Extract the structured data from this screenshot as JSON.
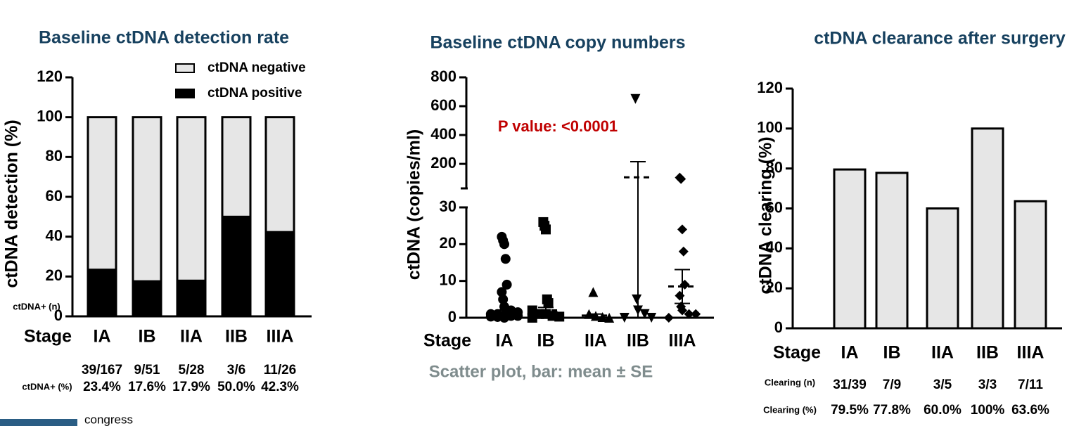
{
  "chart_data": [
    {
      "type": "bar",
      "stacked": true,
      "title": "Baseline ctDNA detection rate",
      "ylabel": "ctDNA detection (%)",
      "xlabel": "Stage",
      "categories": [
        "IA",
        "IB",
        "IIA",
        "IIB",
        "IIIA"
      ],
      "series": [
        {
          "name": "ctDNA positive",
          "color": "#000000",
          "values": [
            23.4,
            17.6,
            17.9,
            50.0,
            42.3
          ]
        },
        {
          "name": "ctDNA negative",
          "color": "#e6e6e6",
          "values": [
            76.6,
            82.4,
            82.1,
            50.0,
            57.7
          ]
        }
      ],
      "ylim": [
        0,
        120
      ],
      "yticks": [
        0,
        20,
        40,
        60,
        80,
        100,
        120
      ],
      "legend": "top-right",
      "table": [
        {
          "label": "ctDNA+ (n)",
          "values": [
            "39/167",
            "9/51",
            "5/28",
            "3/6",
            "11/26"
          ]
        },
        {
          "label": "ctDNA+ (%)",
          "values": [
            "23.4%",
            "17.6%",
            "17.9%",
            "50.0%",
            "42.3%"
          ]
        }
      ]
    },
    {
      "type": "scatter",
      "title": "Baseline ctDNA copy numbers",
      "ylabel": "ctDNA (copies/ml)",
      "xlabel": "Stage",
      "annotation": "P value: <0.0001",
      "note": "Scatter plot, bar: mean ± SE",
      "categories": [
        "IA",
        "IB",
        "IIA",
        "IIB",
        "IIIA"
      ],
      "markers": [
        "circle",
        "square",
        "triangle",
        "triangle-down",
        "diamond"
      ],
      "groups": [
        [
          22,
          21,
          20,
          16,
          9,
          7,
          5,
          3,
          2,
          1.5,
          1,
          1,
          0.8,
          0.5,
          0.5,
          0.3,
          0.2,
          0
        ],
        [
          26,
          25,
          24,
          5,
          4,
          2,
          1,
          1,
          0.5,
          0.3,
          0
        ],
        [
          7,
          1,
          0.5,
          0.2,
          0
        ],
        [
          650,
          5,
          2,
          1,
          0,
          0
        ],
        [
          105,
          95,
          24,
          18,
          9,
          6,
          3,
          2,
          1,
          1,
          0
        ]
      ],
      "means": [
        1.5,
        2,
        0.6,
        107,
        8.5
      ],
      "se": [
        0.6,
        0.8,
        0.4,
        108,
        4.6
      ],
      "ylim": [
        0,
        30
      ],
      "yticks": [
        0,
        10,
        20,
        30
      ],
      "ylim_upper": [
        30,
        800
      ],
      "yticks_upper": [
        200,
        400,
        600,
        800
      ]
    },
    {
      "type": "bar",
      "title": "ctDNA clearance after surgery",
      "ylabel": "ctDNA clearing  (%)",
      "xlabel": "Stage",
      "categories": [
        "IA",
        "IB",
        "IIA",
        "IIB",
        "IIIA"
      ],
      "values": [
        79.5,
        77.8,
        60.0,
        100,
        63.6
      ],
      "color": "#e6e6e6",
      "ylim": [
        0,
        120
      ],
      "yticks": [
        0,
        20,
        40,
        60,
        80,
        100,
        120
      ],
      "table": [
        {
          "label": "Clearing (n)",
          "values": [
            "31/39",
            "7/9",
            "3/5",
            "3/3",
            "7/11"
          ]
        },
        {
          "label": "Clearing (%)",
          "values": [
            "79.5%",
            "77.8%",
            "60.0%",
            "100%",
            "63.6%"
          ]
        }
      ]
    }
  ],
  "logo": "congress"
}
